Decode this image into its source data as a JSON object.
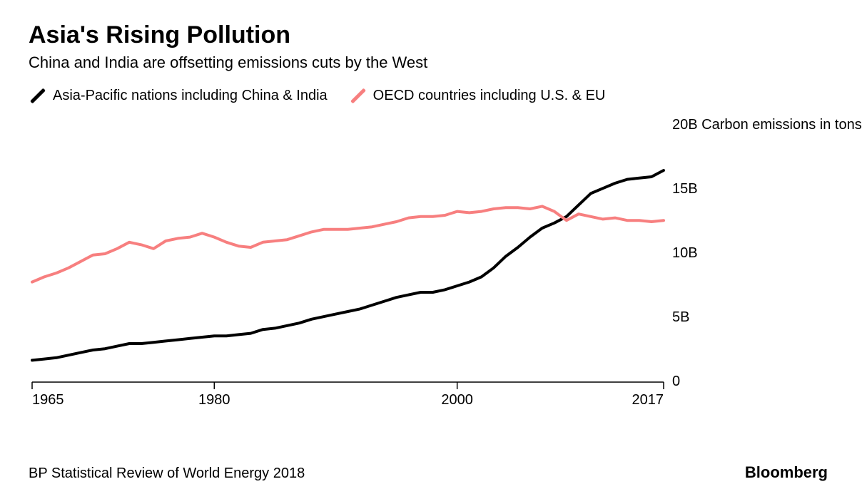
{
  "title": "Asia's Rising Pollution",
  "subtitle": "China and India are offsetting emissions cuts by the West",
  "legend": {
    "series1": {
      "label": "Asia-Pacific nations including China & India",
      "color": "#000000"
    },
    "series2": {
      "label": "OECD countries including U.S. & EU",
      "color": "#f77f7f"
    }
  },
  "chart": {
    "type": "line",
    "background_color": "#ffffff",
    "axis_color": "#000000",
    "line_width": 4,
    "y_unit_label": "20B Carbon emissions in tons",
    "x": {
      "min": 1965,
      "max": 2017,
      "ticks": [
        1965,
        1980,
        2000,
        2017
      ]
    },
    "y": {
      "min": 0,
      "max": 20,
      "ticks": [
        0,
        5,
        10,
        15
      ],
      "tick_labels": [
        "0",
        "5B",
        "10B",
        "15B"
      ]
    },
    "series": [
      {
        "name": "asia_pacific",
        "color": "#000000",
        "points": [
          [
            1965,
            1.7
          ],
          [
            1966,
            1.8
          ],
          [
            1967,
            1.9
          ],
          [
            1968,
            2.1
          ],
          [
            1969,
            2.3
          ],
          [
            1970,
            2.5
          ],
          [
            1971,
            2.6
          ],
          [
            1972,
            2.8
          ],
          [
            1973,
            3.0
          ],
          [
            1974,
            3.0
          ],
          [
            1975,
            3.1
          ],
          [
            1976,
            3.2
          ],
          [
            1977,
            3.3
          ],
          [
            1978,
            3.4
          ],
          [
            1979,
            3.5
          ],
          [
            1980,
            3.6
          ],
          [
            1981,
            3.6
          ],
          [
            1982,
            3.7
          ],
          [
            1983,
            3.8
          ],
          [
            1984,
            4.1
          ],
          [
            1985,
            4.2
          ],
          [
            1986,
            4.4
          ],
          [
            1987,
            4.6
          ],
          [
            1988,
            4.9
          ],
          [
            1989,
            5.1
          ],
          [
            1990,
            5.3
          ],
          [
            1991,
            5.5
          ],
          [
            1992,
            5.7
          ],
          [
            1993,
            6.0
          ],
          [
            1994,
            6.3
          ],
          [
            1995,
            6.6
          ],
          [
            1996,
            6.8
          ],
          [
            1997,
            7.0
          ],
          [
            1998,
            7.0
          ],
          [
            1999,
            7.2
          ],
          [
            2000,
            7.5
          ],
          [
            2001,
            7.8
          ],
          [
            2002,
            8.2
          ],
          [
            2003,
            8.9
          ],
          [
            2004,
            9.8
          ],
          [
            2005,
            10.5
          ],
          [
            2006,
            11.3
          ],
          [
            2007,
            12.0
          ],
          [
            2008,
            12.4
          ],
          [
            2009,
            12.9
          ],
          [
            2010,
            13.8
          ],
          [
            2011,
            14.7
          ],
          [
            2012,
            15.1
          ],
          [
            2013,
            15.5
          ],
          [
            2014,
            15.8
          ],
          [
            2015,
            15.9
          ],
          [
            2016,
            16.0
          ],
          [
            2017,
            16.5
          ]
        ]
      },
      {
        "name": "oecd",
        "color": "#f77f7f",
        "points": [
          [
            1965,
            7.8
          ],
          [
            1966,
            8.2
          ],
          [
            1967,
            8.5
          ],
          [
            1968,
            8.9
          ],
          [
            1969,
            9.4
          ],
          [
            1970,
            9.9
          ],
          [
            1971,
            10.0
          ],
          [
            1972,
            10.4
          ],
          [
            1973,
            10.9
          ],
          [
            1974,
            10.7
          ],
          [
            1975,
            10.4
          ],
          [
            1976,
            11.0
          ],
          [
            1977,
            11.2
          ],
          [
            1978,
            11.3
          ],
          [
            1979,
            11.6
          ],
          [
            1980,
            11.3
          ],
          [
            1981,
            10.9
          ],
          [
            1982,
            10.6
          ],
          [
            1983,
            10.5
          ],
          [
            1984,
            10.9
          ],
          [
            1985,
            11.0
          ],
          [
            1986,
            11.1
          ],
          [
            1987,
            11.4
          ],
          [
            1988,
            11.7
          ],
          [
            1989,
            11.9
          ],
          [
            1990,
            11.9
          ],
          [
            1991,
            11.9
          ],
          [
            1992,
            12.0
          ],
          [
            1993,
            12.1
          ],
          [
            1994,
            12.3
          ],
          [
            1995,
            12.5
          ],
          [
            1996,
            12.8
          ],
          [
            1997,
            12.9
          ],
          [
            1998,
            12.9
          ],
          [
            1999,
            13.0
          ],
          [
            2000,
            13.3
          ],
          [
            2001,
            13.2
          ],
          [
            2002,
            13.3
          ],
          [
            2003,
            13.5
          ],
          [
            2004,
            13.6
          ],
          [
            2005,
            13.6
          ],
          [
            2006,
            13.5
          ],
          [
            2007,
            13.7
          ],
          [
            2008,
            13.3
          ],
          [
            2009,
            12.6
          ],
          [
            2010,
            13.1
          ],
          [
            2011,
            12.9
          ],
          [
            2012,
            12.7
          ],
          [
            2013,
            12.8
          ],
          [
            2014,
            12.6
          ],
          [
            2015,
            12.6
          ],
          [
            2016,
            12.5
          ],
          [
            2017,
            12.6
          ]
        ]
      }
    ]
  },
  "source": "BP Statistical Review of World Energy 2018",
  "brand": "Bloomberg"
}
